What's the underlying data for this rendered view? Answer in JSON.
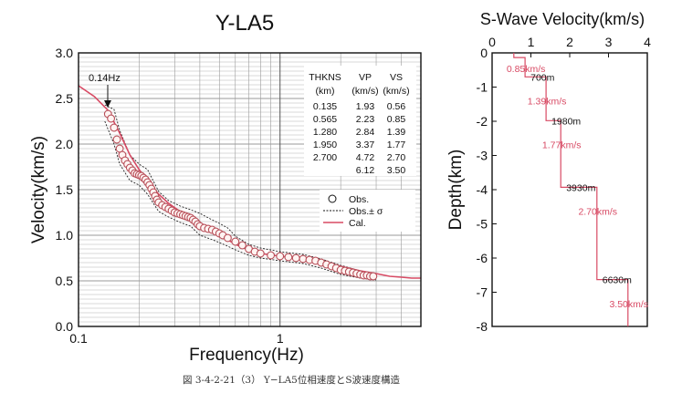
{
  "caption": "図 3-4-2-21（3） Y−LA5位相速度とS波速度構造",
  "colors": {
    "obs": "#b8505a",
    "cal": "#d84a64",
    "step": "#d84a64",
    "grid": "#888888",
    "text": "#111111"
  },
  "chart_data": [
    {
      "type": "scatter",
      "title": "Y-LA5",
      "xlabel": "Frequency(Hz)",
      "ylabel": "Velocity(km/s)",
      "xscale": "log",
      "xlim": [
        0.1,
        5
      ],
      "ylim": [
        0,
        3.0
      ],
      "xticks": [
        {
          "v": 0.1,
          "label": "0.1"
        },
        {
          "v": 1,
          "label": "1"
        }
      ],
      "yticks": [
        "0.0",
        "0.5",
        "1.0",
        "1.5",
        "2.0",
        "2.5",
        "3.0"
      ],
      "grid": true,
      "legend": {
        "position": "right",
        "entries": [
          "Obs.",
          "Obs.± σ",
          "Cal."
        ]
      },
      "annotation": {
        "text": "0.14Hz",
        "x": 0.14,
        "y": 2.37
      },
      "table": {
        "headers": [
          "THKNS",
          "VP",
          "VS"
        ],
        "units": [
          "(km)",
          "(km/s)",
          "(km/s)"
        ],
        "rows": [
          [
            "0.135",
            "1.93",
            "0.56"
          ],
          [
            "0.565",
            "2.23",
            "0.85"
          ],
          [
            "1.280",
            "2.84",
            "1.39"
          ],
          [
            "1.950",
            "3.37",
            "1.77"
          ],
          [
            "2.700",
            "4.72",
            "2.70"
          ],
          [
            "",
            "6.12",
            "3.50"
          ]
        ]
      },
      "series": [
        {
          "name": "Obs.",
          "x": [
            0.14,
            0.145,
            0.15,
            0.155,
            0.16,
            0.165,
            0.17,
            0.175,
            0.18,
            0.185,
            0.19,
            0.195,
            0.2,
            0.205,
            0.21,
            0.215,
            0.22,
            0.225,
            0.23,
            0.235,
            0.24,
            0.245,
            0.25,
            0.26,
            0.27,
            0.28,
            0.29,
            0.3,
            0.31,
            0.32,
            0.33,
            0.34,
            0.35,
            0.36,
            0.37,
            0.38,
            0.39,
            0.4,
            0.42,
            0.44,
            0.46,
            0.48,
            0.5,
            0.52,
            0.55,
            0.6,
            0.65,
            0.7,
            0.75,
            0.8,
            0.9,
            1.0,
            1.1,
            1.2,
            1.3,
            1.4,
            1.5,
            1.6,
            1.7,
            1.8,
            1.9,
            2.0,
            2.1,
            2.2,
            2.3,
            2.4,
            2.5,
            2.6,
            2.7,
            2.8,
            2.9
          ],
          "y": [
            2.33,
            2.28,
            2.18,
            2.05,
            1.95,
            1.88,
            1.82,
            1.78,
            1.74,
            1.71,
            1.68,
            1.67,
            1.66,
            1.65,
            1.63,
            1.61,
            1.58,
            1.55,
            1.51,
            1.47,
            1.43,
            1.39,
            1.36,
            1.33,
            1.31,
            1.29,
            1.27,
            1.25,
            1.24,
            1.23,
            1.22,
            1.21,
            1.2,
            1.19,
            1.17,
            1.15,
            1.12,
            1.1,
            1.08,
            1.07,
            1.06,
            1.04,
            1.02,
            1.0,
            0.97,
            0.93,
            0.89,
            0.85,
            0.82,
            0.8,
            0.78,
            0.77,
            0.76,
            0.75,
            0.74,
            0.73,
            0.72,
            0.7,
            0.68,
            0.66,
            0.64,
            0.62,
            0.61,
            0.6,
            0.59,
            0.58,
            0.57,
            0.56,
            0.56,
            0.55,
            0.55
          ]
        },
        {
          "name": "Cal.",
          "x": [
            0.1,
            0.12,
            0.14,
            0.16,
            0.18,
            0.2,
            0.22,
            0.25,
            0.28,
            0.32,
            0.36,
            0.4,
            0.45,
            0.5,
            0.55,
            0.6,
            0.7,
            0.8,
            1.0,
            1.2,
            1.5,
            2.0,
            2.5,
            3.0,
            3.5,
            4.0,
            4.5,
            5.0
          ],
          "y": [
            2.64,
            2.52,
            2.37,
            2.12,
            1.88,
            1.72,
            1.6,
            1.45,
            1.35,
            1.26,
            1.2,
            1.14,
            1.07,
            1.0,
            0.95,
            0.9,
            0.84,
            0.8,
            0.77,
            0.75,
            0.72,
            0.66,
            0.61,
            0.58,
            0.55,
            0.54,
            0.53,
            0.53
          ]
        },
        {
          "name": "Obs.± σ upper",
          "x": [
            0.135,
            0.15,
            0.16,
            0.18,
            0.2,
            0.22,
            0.25,
            0.28,
            0.32,
            0.36,
            0.4,
            0.45,
            0.5,
            0.55,
            0.6,
            0.7,
            0.8,
            1.0,
            1.3,
            1.6,
            2.0,
            2.5,
            3.0
          ],
          "y": [
            2.43,
            2.38,
            2.15,
            1.88,
            1.78,
            1.72,
            1.48,
            1.38,
            1.32,
            1.28,
            1.24,
            1.18,
            1.13,
            1.08,
            0.99,
            0.9,
            0.86,
            0.82,
            0.79,
            0.74,
            0.67,
            0.61,
            0.58
          ]
        },
        {
          "name": "Obs.± σ lower",
          "x": [
            0.135,
            0.15,
            0.16,
            0.18,
            0.2,
            0.22,
            0.25,
            0.28,
            0.32,
            0.36,
            0.4,
            0.45,
            0.5,
            0.55,
            0.6,
            0.7,
            0.8,
            1.0,
            1.3,
            1.6,
            2.0,
            2.5,
            3.0
          ],
          "y": [
            2.25,
            2.0,
            1.78,
            1.6,
            1.55,
            1.45,
            1.26,
            1.2,
            1.14,
            1.1,
            1.0,
            0.96,
            0.92,
            0.88,
            0.84,
            0.78,
            0.75,
            0.72,
            0.69,
            0.64,
            0.57,
            0.53,
            0.51
          ]
        }
      ]
    },
    {
      "type": "line",
      "title": "S-Wave Velocity(km/s)",
      "xlabel": "",
      "ylabel": "Depth(km)",
      "xlim": [
        0,
        4
      ],
      "ylim": [
        -8,
        0
      ],
      "xticks": [
        "0",
        "1",
        "2",
        "3",
        "4"
      ],
      "yticks": [
        "0",
        "-1",
        "-2",
        "-3",
        "-4",
        "-5",
        "-6",
        "-7",
        "-8"
      ],
      "layers": [
        {
          "vs": 0.85,
          "top": 0.0,
          "bottom": 0.7,
          "vs_label": "0.85km/s",
          "depth_label": "700m"
        },
        {
          "vs": 1.39,
          "top": 0.7,
          "bottom": 1.98,
          "vs_label": "1.39km/s",
          "depth_label": "1980m"
        },
        {
          "vs": 1.77,
          "top": 1.98,
          "bottom": 3.93,
          "vs_label": "1.77km/s",
          "depth_label": "3930m"
        },
        {
          "vs": 2.7,
          "top": 3.93,
          "bottom": 6.63,
          "vs_label": "2.70km/s",
          "depth_label": "6630m"
        },
        {
          "vs": 3.5,
          "top": 6.63,
          "bottom": 8.0,
          "vs_label": "3.50km/s",
          "depth_label": ""
        }
      ],
      "top_segment": {
        "vs": 0.56,
        "depth": 0.135
      }
    }
  ]
}
